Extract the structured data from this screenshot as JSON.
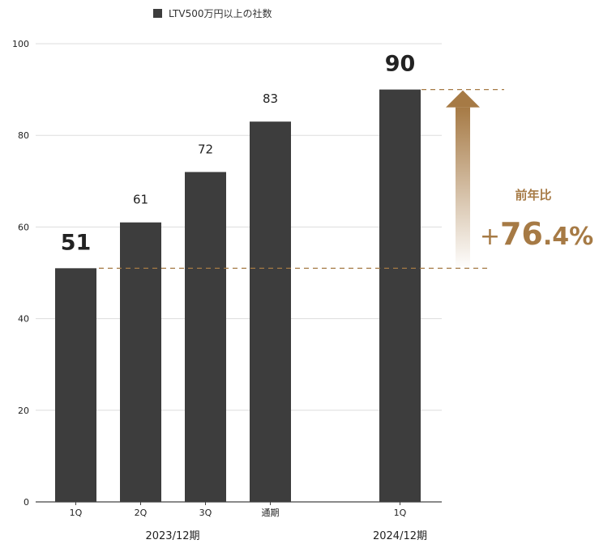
{
  "chart_data": {
    "type": "bar",
    "legend": {
      "label": "LTV500万円以上の社数",
      "position": "top"
    },
    "ylim": [
      0,
      100
    ],
    "yticks": [
      0,
      20,
      40,
      60,
      80,
      100
    ],
    "grid": true,
    "series": [
      {
        "name": "LTV500万円以上の社数",
        "color": "#3d3d3d",
        "points": [
          {
            "category": "1Q",
            "group": "2023/12期",
            "value": 51,
            "label": "51",
            "emphasis": true
          },
          {
            "category": "2Q",
            "group": "2023/12期",
            "value": 61,
            "label": "61",
            "emphasis": false
          },
          {
            "category": "3Q",
            "group": "2023/12期",
            "value": 72,
            "label": "72",
            "emphasis": false
          },
          {
            "category": "通期",
            "group": "2023/12期",
            "value": 83,
            "label": "83",
            "emphasis": false
          },
          {
            "category": "1Q",
            "group": "2024/12期",
            "value": 90,
            "label": "90",
            "emphasis": true
          }
        ]
      }
    ],
    "groups": [
      "2023/12期",
      "2024/12期"
    ],
    "annotation": {
      "title": "前年比",
      "value_text": "+76.4%",
      "from": 51,
      "to": 90,
      "color": "#a67a45"
    }
  }
}
